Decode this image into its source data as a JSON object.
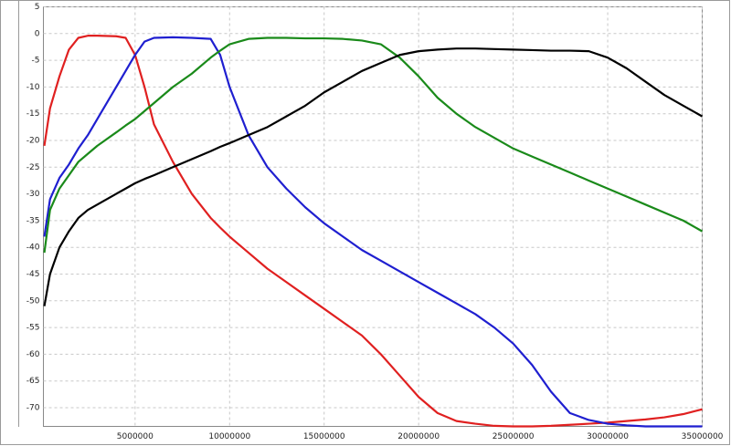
{
  "chart_data": {
    "type": "line",
    "x": [
      200000,
      500000,
      1000000,
      1500000,
      2000000,
      2500000,
      3000000,
      4000000,
      4500000,
      5000000,
      5500000,
      6000000,
      7000000,
      8000000,
      9000000,
      9500000,
      10000000,
      11000000,
      12000000,
      13000000,
      14000000,
      15000000,
      16000000,
      17000000,
      18000000,
      19000000,
      20000000,
      21000000,
      22000000,
      23000000,
      24000000,
      25000000,
      26000000,
      27000000,
      28000000,
      29000000,
      30000000,
      31000000,
      32000000,
      33000000,
      34000000,
      35000000
    ],
    "series": [
      {
        "color": "#e02020",
        "values": [
          -21,
          -14,
          -8,
          -3,
          -0.8,
          -0.4,
          -0.4,
          -0.5,
          -0.8,
          -4,
          -10,
          -17,
          -24,
          -30,
          -34.5,
          -36.3,
          -38,
          -41,
          -44,
          -46.5,
          -49,
          -51.5,
          -54,
          -56.5,
          -60,
          -64,
          -68,
          -71,
          -72.5,
          -73,
          -73.4,
          -73.5,
          -73.5,
          -73.4,
          -73.2,
          -73,
          -72.8,
          -72.5,
          -72.2,
          -71.8,
          -71.2,
          -70.3
        ]
      },
      {
        "color": "#1f1fd0",
        "values": [
          -38,
          -31,
          -27,
          -24.5,
          -21.5,
          -19,
          -16,
          -10,
          -7,
          -4,
          -1.5,
          -0.8,
          -0.7,
          -0.8,
          -1,
          -4,
          -10,
          -19,
          -25,
          -29,
          -32.5,
          -35.5,
          -38,
          -40.5,
          -42.5,
          -44.5,
          -46.5,
          -48.5,
          -50.5,
          -52.5,
          -55,
          -58,
          -62,
          -67,
          -71,
          -72.3,
          -73,
          -73.3,
          -73.5,
          -73.5,
          -73.5,
          -73.5
        ]
      },
      {
        "color": "#1a8a1a",
        "values": [
          -41,
          -33,
          -29,
          -26.5,
          -24,
          -22.5,
          -21,
          -18.5,
          -17.2,
          -16,
          -14.5,
          -13,
          -10,
          -7.5,
          -4.5,
          -3.2,
          -2,
          -1,
          -0.8,
          -0.8,
          -0.9,
          -0.9,
          -1,
          -1.3,
          -2,
          -4.5,
          -8,
          -12,
          -15,
          -17.5,
          -19.5,
          -21.5,
          -23,
          -24.5,
          -26,
          -27.5,
          -29,
          -30.5,
          -32,
          -33.5,
          -35,
          -37
        ]
      },
      {
        "color": "#000000",
        "values": [
          -51,
          -45,
          -40,
          -37,
          -34.5,
          -33,
          -32,
          -30,
          -29,
          -28,
          -27.2,
          -26.5,
          -25,
          -23.5,
          -22,
          -21.2,
          -20.5,
          -19,
          -17.5,
          -15.5,
          -13.5,
          -11,
          -9,
          -7,
          -5.5,
          -4,
          -3.3,
          -3,
          -2.8,
          -2.8,
          -2.9,
          -3,
          -3.1,
          -3.2,
          -3.2,
          -3.3,
          -4.5,
          -6.5,
          -9,
          -11.5,
          -13.5,
          -15.5
        ]
      }
    ],
    "xlim": [
      150000,
      35000000
    ],
    "ylim": [
      -73.5,
      5
    ],
    "xticks": [
      5000000,
      10000000,
      15000000,
      20000000,
      25000000,
      30000000,
      35000000
    ],
    "yticks": [
      5,
      0,
      -5,
      -10,
      -15,
      -20,
      -25,
      -30,
      -35,
      -40,
      -45,
      -50,
      -55,
      -60,
      -65,
      -70
    ],
    "grid": true
  }
}
